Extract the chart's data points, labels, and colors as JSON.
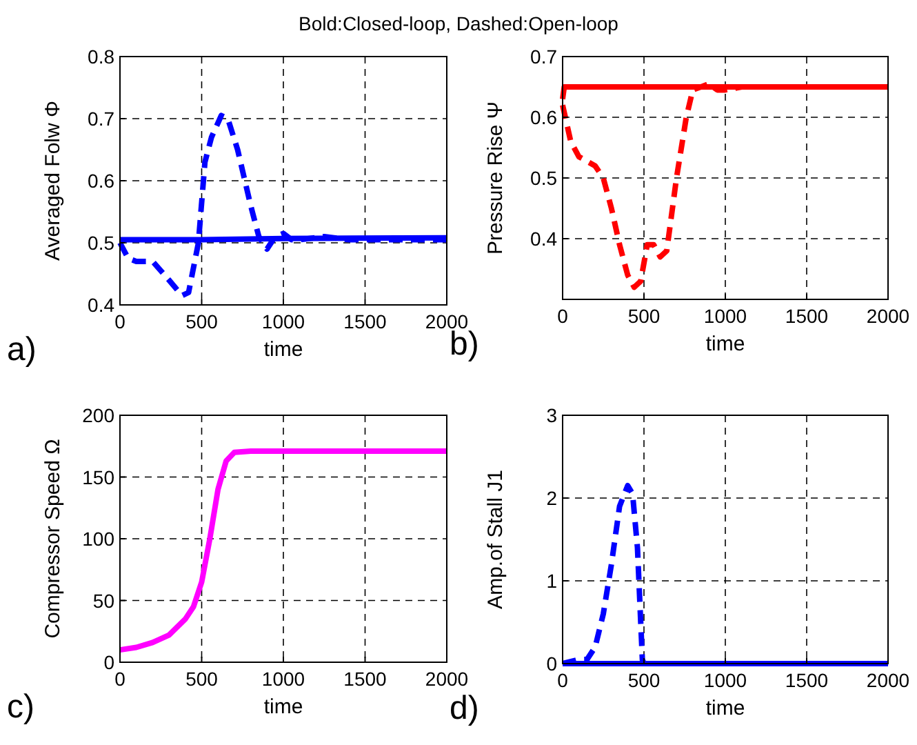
{
  "chart_data": [
    {
      "type": "line",
      "title": "Bold:Closed-loop, Dashed:Open-loop",
      "xlabel": "time",
      "ylabel": "Averaged Folw Φ",
      "annotations": [
        "a)"
      ],
      "xlim": [
        0,
        2000
      ],
      "xticks": [
        0,
        500,
        1000,
        1500,
        2000
      ],
      "ylim": [
        0.4,
        0.8
      ],
      "yticks": [
        0.4,
        0.5,
        0.6,
        0.7,
        0.8
      ],
      "grid": true,
      "series": [
        {
          "color": "#0000ff",
          "line_style": "solid",
          "x": [
            0,
            500,
            1000,
            2000
          ],
          "values": [
            0.505,
            0.505,
            0.507,
            0.508
          ]
        },
        {
          "color": "#0000ff",
          "line_style": "dashed",
          "x": [
            0,
            50,
            100,
            200,
            300,
            380,
            420,
            480,
            520,
            560,
            620,
            660,
            720,
            800,
            850,
            900,
            950,
            1000,
            1050,
            1100,
            1250,
            1400,
            2000
          ],
          "values": [
            0.5,
            0.475,
            0.47,
            0.47,
            0.44,
            0.415,
            0.42,
            0.5,
            0.63,
            0.67,
            0.705,
            0.7,
            0.65,
            0.56,
            0.51,
            0.49,
            0.51,
            0.515,
            0.505,
            0.505,
            0.51,
            0.505,
            0.505
          ]
        }
      ]
    },
    {
      "type": "line",
      "xlabel": "time",
      "ylabel": "Pressure Rise Ψ",
      "annotations": [
        "b)"
      ],
      "xlim": [
        0,
        2000
      ],
      "xticks": [
        0,
        500,
        1000,
        1500,
        2000
      ],
      "ylim": [
        0.3,
        0.7
      ],
      "yticks": [
        0.4,
        0.5,
        0.6,
        0.7
      ],
      "grid": true,
      "series": [
        {
          "color": "#ff0000",
          "line_style": "solid",
          "x": [
            0,
            10,
            2000
          ],
          "values": [
            0.63,
            0.65,
            0.65
          ]
        },
        {
          "color": "#ff0000",
          "line_style": "dashed",
          "x": [
            0,
            50,
            100,
            200,
            250,
            300,
            350,
            400,
            440,
            480,
            520,
            560,
            600,
            640,
            700,
            760,
            800,
            850,
            900,
            950,
            1000,
            1100,
            2000
          ],
          "values": [
            0.62,
            0.56,
            0.535,
            0.52,
            0.5,
            0.45,
            0.39,
            0.34,
            0.32,
            0.33,
            0.39,
            0.39,
            0.37,
            0.38,
            0.5,
            0.6,
            0.645,
            0.65,
            0.655,
            0.645,
            0.645,
            0.65,
            0.65
          ]
        }
      ]
    },
    {
      "type": "line",
      "xlabel": "time",
      "ylabel": "Compressor Speed Ω",
      "annotations": [
        "c)"
      ],
      "xlim": [
        0,
        2000
      ],
      "xticks": [
        0,
        500,
        1000,
        1500,
        2000
      ],
      "ylim": [
        0,
        200
      ],
      "yticks": [
        0,
        50,
        100,
        150,
        200
      ],
      "grid": true,
      "series": [
        {
          "color": "#ff00ff",
          "line_style": "solid",
          "x": [
            0,
            100,
            200,
            300,
            400,
            450,
            500,
            550,
            600,
            650,
            700,
            800,
            2000
          ],
          "values": [
            10,
            12,
            16,
            22,
            35,
            45,
            65,
            100,
            140,
            163,
            170,
            171,
            171
          ]
        }
      ]
    },
    {
      "type": "line",
      "xlabel": "time",
      "ylabel": "Amp.of Stall J1",
      "annotations": [
        "d)"
      ],
      "xlim": [
        0,
        2000
      ],
      "xticks": [
        0,
        500,
        1000,
        1500,
        2000
      ],
      "ylim": [
        0,
        3
      ],
      "yticks": [
        0,
        1,
        2,
        3
      ],
      "grid": true,
      "series": [
        {
          "color": "#0000ff",
          "line_style": "dashed",
          "x": [
            0,
            100,
            150,
            200,
            250,
            300,
            350,
            400,
            430,
            460,
            480,
            490,
            500,
            2000
          ],
          "values": [
            0,
            0.05,
            0.05,
            0.2,
            0.6,
            1.2,
            1.9,
            2.15,
            2.05,
            1.4,
            0.5,
            0.05,
            0,
            0
          ]
        },
        {
          "color": "#0000ff",
          "line_style": "solid",
          "x": [
            0,
            2000
          ],
          "values": [
            0,
            0
          ]
        }
      ]
    }
  ]
}
